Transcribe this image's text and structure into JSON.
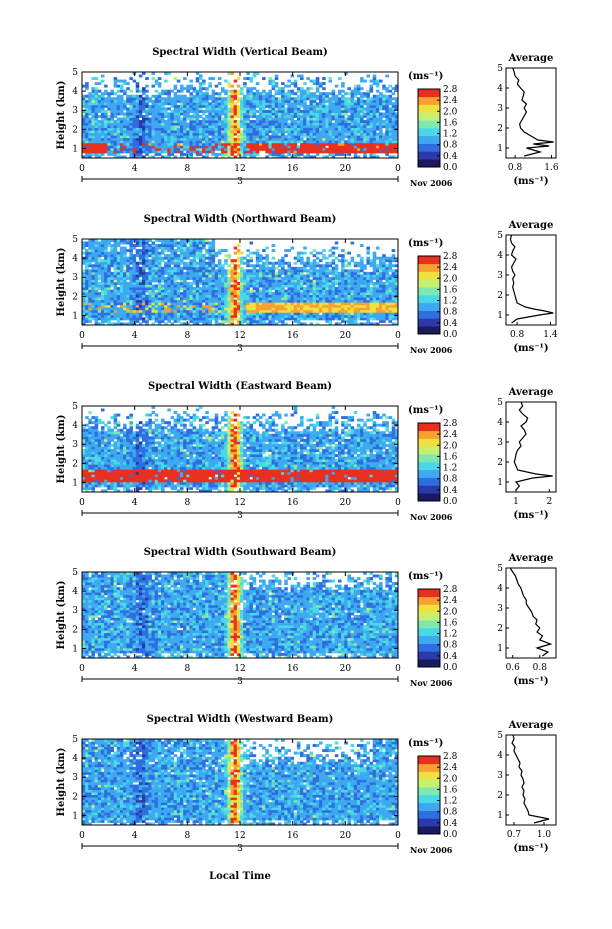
{
  "figure": {
    "xlabel": "Local Time",
    "date_day": "3",
    "date_label": "Nov 2006",
    "units": "(ms⁻¹)",
    "ylabel": "Height (km)",
    "avg_title": "Average"
  },
  "chart_data": [
    {
      "type": "heatmap",
      "title": "Spectral Width (Vertical Beam)",
      "beam": "vertical",
      "xlabel": "",
      "ylabel": "Height (km)",
      "xlim": [
        0,
        24
      ],
      "ylim": [
        0.5,
        5
      ],
      "xticks": [
        "0",
        "4",
        "8",
        "12",
        "16",
        "20",
        "0"
      ],
      "yticks": [
        "1",
        "2",
        "3",
        "4",
        "5"
      ],
      "colorbar": {
        "range": [
          0,
          2.8
        ],
        "ticks": [
          "2.8",
          "2.4",
          "2.0",
          "1.6",
          "1.2",
          "0.8",
          "0.4",
          "0.0"
        ],
        "colors": [
          "#1a1a60",
          "#2a3aa8",
          "#2f6ee0",
          "#3ea8f0",
          "#48d8e8",
          "#7fe8b0",
          "#c8f070",
          "#f0e040",
          "#f8a030",
          "#e83020"
        ]
      },
      "profile": {
        "title": "Average",
        "xlabel": "(ms⁻¹)",
        "xticks": [
          "0.8",
          "1.6"
        ],
        "xlim": [
          0.6,
          1.7
        ],
        "heights": [
          0.6,
          0.8,
          1.0,
          1.1,
          1.2,
          1.3,
          1.4,
          1.6,
          1.8,
          2.0,
          2.2,
          2.4,
          2.6,
          2.8,
          3.0,
          3.2,
          3.4,
          3.6,
          3.8,
          4.0,
          4.2,
          4.4,
          4.6,
          4.8,
          5.0
        ],
        "values": [
          1.0,
          1.35,
          1.05,
          1.55,
          1.2,
          1.65,
          1.3,
          1.15,
          1.0,
          0.92,
          0.9,
          0.95,
          1.0,
          1.05,
          1.0,
          1.05,
          0.95,
          0.98,
          1.0,
          0.92,
          0.85,
          0.88,
          0.8,
          0.78,
          0.75
        ]
      }
    },
    {
      "type": "heatmap",
      "title": "Spectral Width (Northward Beam)",
      "beam": "north",
      "xlabel": "",
      "ylabel": "Height (km)",
      "xlim": [
        0,
        24
      ],
      "ylim": [
        0.5,
        5
      ],
      "xticks": [
        "0",
        "4",
        "8",
        "12",
        "16",
        "20",
        "0"
      ],
      "yticks": [
        "1",
        "2",
        "3",
        "4",
        "5"
      ],
      "colorbar": {
        "range": [
          0,
          2.8
        ],
        "ticks": [
          "2.8",
          "2.4",
          "2.0",
          "1.6",
          "1.2",
          "0.8",
          "0.4",
          "0.0"
        ],
        "colors": [
          "#1a1a60",
          "#2a3aa8",
          "#2f6ee0",
          "#3ea8f0",
          "#48d8e8",
          "#7fe8b0",
          "#c8f070",
          "#f0e040",
          "#f8a030",
          "#e83020"
        ]
      },
      "profile": {
        "title": "Average",
        "xlabel": "(ms⁻¹)",
        "xticks": [
          "0.8",
          "1.4"
        ],
        "xlim": [
          0.6,
          1.5
        ],
        "heights": [
          0.6,
          0.8,
          1.0,
          1.1,
          1.2,
          1.3,
          1.4,
          1.6,
          1.8,
          2.0,
          2.2,
          2.4,
          2.6,
          2.8,
          3.0,
          3.2,
          3.4,
          3.6,
          3.8,
          4.0,
          4.2,
          4.4,
          4.6,
          4.8,
          5.0
        ],
        "values": [
          0.7,
          0.8,
          1.2,
          1.45,
          1.3,
          1.1,
          0.95,
          0.8,
          0.78,
          0.76,
          0.74,
          0.72,
          0.74,
          0.72,
          0.76,
          0.72,
          0.7,
          0.74,
          0.78,
          0.7,
          0.72,
          0.76,
          0.7,
          0.68,
          0.7
        ]
      }
    },
    {
      "type": "heatmap",
      "title": "Spectral Width (Eastward Beam)",
      "beam": "east",
      "xlabel": "",
      "ylabel": "Height (km)",
      "xlim": [
        0,
        24
      ],
      "ylim": [
        0.5,
        5
      ],
      "xticks": [
        "0",
        "4",
        "8",
        "12",
        "16",
        "20",
        "0"
      ],
      "yticks": [
        "1",
        "2",
        "3",
        "4",
        "5"
      ],
      "colorbar": {
        "range": [
          0,
          2.8
        ],
        "ticks": [
          "2.8",
          "2.4",
          "2.0",
          "1.6",
          "1.2",
          "0.8",
          "0.4",
          "0.0"
        ],
        "colors": [
          "#1a1a60",
          "#2a3aa8",
          "#2f6ee0",
          "#3ea8f0",
          "#48d8e8",
          "#7fe8b0",
          "#c8f070",
          "#f0e040",
          "#f8a030",
          "#e83020"
        ]
      },
      "profile": {
        "title": "Average",
        "xlabel": "(ms⁻¹)",
        "xticks": [
          "1",
          "2"
        ],
        "xlim": [
          0.7,
          2.2
        ],
        "heights": [
          0.6,
          0.8,
          1.0,
          1.2,
          1.3,
          1.4,
          1.6,
          1.8,
          2.0,
          2.2,
          2.4,
          2.6,
          2.8,
          3.0,
          3.2,
          3.4,
          3.6,
          3.8,
          4.0,
          4.2,
          4.4,
          4.6,
          4.8,
          5.0
        ],
        "values": [
          1.0,
          1.1,
          1.0,
          1.5,
          2.1,
          1.6,
          1.05,
          1.0,
          0.95,
          0.98,
          1.0,
          1.05,
          1.15,
          1.1,
          1.2,
          1.3,
          1.25,
          1.15,
          1.3,
          1.35,
          1.2,
          1.1,
          1.2,
          1.15
        ]
      }
    },
    {
      "type": "heatmap",
      "title": "Spectral Width (Southward Beam)",
      "beam": "south",
      "xlabel": "",
      "ylabel": "Height (km)",
      "xlim": [
        0,
        24
      ],
      "ylim": [
        0.5,
        5
      ],
      "xticks": [
        "0",
        "4",
        "8",
        "12",
        "16",
        "20",
        "0"
      ],
      "yticks": [
        "1",
        "2",
        "3",
        "4",
        "5"
      ],
      "colorbar": {
        "range": [
          0,
          2.8
        ],
        "ticks": [
          "2.8",
          "2.4",
          "2.0",
          "1.6",
          "1.2",
          "0.8",
          "0.4",
          "0.0"
        ],
        "colors": [
          "#1a1a60",
          "#2a3aa8",
          "#2f6ee0",
          "#3ea8f0",
          "#48d8e8",
          "#7fe8b0",
          "#c8f070",
          "#f0e040",
          "#f8a030",
          "#e83020"
        ]
      },
      "profile": {
        "title": "Average",
        "xlabel": "(ms⁻¹)",
        "xticks": [
          "0.6",
          "0.8"
        ],
        "xlim": [
          0.55,
          0.92
        ],
        "heights": [
          0.6,
          0.8,
          1.0,
          1.2,
          1.4,
          1.6,
          1.8,
          2.0,
          2.2,
          2.4,
          2.6,
          2.8,
          3.0,
          3.2,
          3.4,
          3.6,
          3.8,
          4.0,
          4.2,
          4.4,
          4.6,
          4.8,
          5.0
        ],
        "values": [
          0.82,
          0.86,
          0.78,
          0.88,
          0.8,
          0.82,
          0.78,
          0.8,
          0.77,
          0.78,
          0.75,
          0.74,
          0.72,
          0.7,
          0.7,
          0.68,
          0.67,
          0.66,
          0.64,
          0.63,
          0.62,
          0.6,
          0.58
        ]
      }
    },
    {
      "type": "heatmap",
      "title": "Spectral Width (Westward Beam)",
      "beam": "west",
      "xlabel": "Local Time",
      "ylabel": "Height (km)",
      "xlim": [
        0,
        24
      ],
      "ylim": [
        0.5,
        5
      ],
      "xticks": [
        "0",
        "4",
        "8",
        "12",
        "16",
        "20",
        "0"
      ],
      "yticks": [
        "1",
        "2",
        "3",
        "4",
        "5"
      ],
      "colorbar": {
        "range": [
          0,
          2.8
        ],
        "ticks": [
          "2.8",
          "2.4",
          "2.0",
          "1.6",
          "1.2",
          "0.8",
          "0.4",
          "0.0"
        ],
        "colors": [
          "#1a1a60",
          "#2a3aa8",
          "#2f6ee0",
          "#3ea8f0",
          "#48d8e8",
          "#7fe8b0",
          "#c8f070",
          "#f0e040",
          "#f8a030",
          "#e83020"
        ]
      },
      "profile": {
        "title": "Average",
        "xlabel": "(ms⁻¹)",
        "xticks": [
          "0.7",
          "1.0"
        ],
        "xlim": [
          0.62,
          1.12
        ],
        "heights": [
          0.6,
          0.8,
          1.0,
          1.2,
          1.4,
          1.6,
          1.8,
          2.0,
          2.2,
          2.4,
          2.6,
          2.8,
          3.0,
          3.2,
          3.4,
          3.6,
          3.8,
          4.0,
          4.2,
          4.4,
          4.6,
          4.8,
          5.0
        ],
        "values": [
          0.9,
          1.05,
          0.85,
          0.84,
          0.82,
          0.8,
          0.81,
          0.79,
          0.8,
          0.78,
          0.8,
          0.79,
          0.77,
          0.78,
          0.75,
          0.76,
          0.74,
          0.72,
          0.7,
          0.71,
          0.68,
          0.7,
          0.69
        ]
      }
    }
  ]
}
